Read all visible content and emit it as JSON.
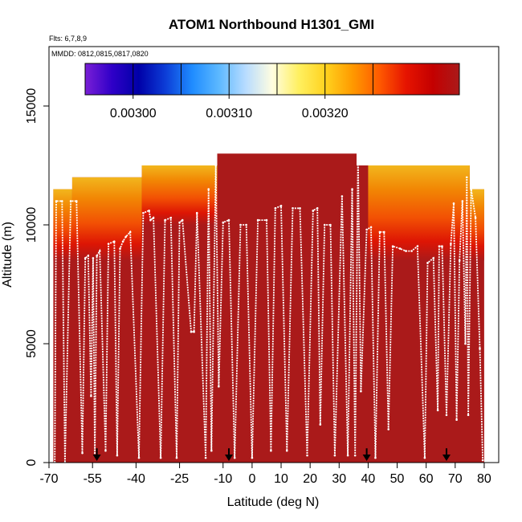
{
  "chart_data": {
    "type": "heatmap",
    "title": "ATOM1 Northbound H1301_GMI",
    "subtitle_flights": "Flts: 6,7,8,9",
    "subtitle_dates": "MMDD: 0812,0815,0817,0820",
    "xlabel": "Latitude (deg N)",
    "ylabel": "Altitude (m)",
    "xlim": [
      -70,
      85
    ],
    "ylim": [
      0,
      17500
    ],
    "x_ticks": [
      {
        "value": -70,
        "label": "-70"
      },
      {
        "value": -55,
        "label": "-55"
      },
      {
        "value": -40,
        "label": "-40"
      },
      {
        "value": -25,
        "label": "-25"
      },
      {
        "value": -10,
        "label": "-10"
      },
      {
        "value": 0,
        "label": "0"
      },
      {
        "value": 10,
        "label": "10"
      },
      {
        "value": 20,
        "label": "20"
      },
      {
        "value": 30,
        "label": "30"
      },
      {
        "value": 40,
        "label": "40"
      },
      {
        "value": 50,
        "label": "50"
      },
      {
        "value": 60,
        "label": "60"
      },
      {
        "value": 70,
        "label": "70"
      },
      {
        "value": 80,
        "label": "80"
      }
    ],
    "y_ticks": [
      {
        "value": 0,
        "label": "0"
      },
      {
        "value": 5000,
        "label": "5000"
      },
      {
        "value": 10000,
        "label": "10000"
      },
      {
        "value": 15000,
        "label": "15000"
      }
    ],
    "colorbar": {
      "min": 0.00295,
      "max": 0.00334,
      "colors": [
        "#7a1fd6",
        "#3000c8",
        "#0000a8",
        "#0c3cd6",
        "#1f8cff",
        "#5cb8ff",
        "#b8dcff",
        "#fffde0",
        "#fff060",
        "#ffd21e",
        "#ff9a00",
        "#ff5a00",
        "#e61400",
        "#c40000",
        "#aa1a1a"
      ],
      "ticks": [
        {
          "value": 0.003,
          "label": "0.00300"
        },
        {
          "value": 0.0031,
          "label": "0.00310"
        },
        {
          "value": 0.0032,
          "label": "0.00320"
        }
      ],
      "dividers": [
        0.003,
        0.00305,
        0.0031,
        0.00315,
        0.0032,
        0.00325
      ]
    },
    "background_value": 0.00334,
    "curtain_top": [
      {
        "x": -68.5,
        "y": 11500
      },
      {
        "x": -62,
        "y": 11500
      },
      {
        "x": -62,
        "y": 12000
      },
      {
        "x": -38,
        "y": 12000
      },
      {
        "x": -38,
        "y": 12500
      },
      {
        "x": -12,
        "y": 12500
      },
      {
        "x": -12,
        "y": 13000
      },
      {
        "x": 36,
        "y": 13000
      },
      {
        "x": 36,
        "y": 12500
      },
      {
        "x": 75,
        "y": 12500
      },
      {
        "x": 75,
        "y": 11500
      },
      {
        "x": 80,
        "y": 11500
      },
      {
        "x": 80,
        "y": 0
      },
      {
        "x": -68.5,
        "y": 0
      }
    ],
    "gradient_bands": [
      {
        "x0": -68.5,
        "x1": -62,
        "y_top": 11500,
        "y_bottom": 8500
      },
      {
        "x0": -62,
        "x1": -38,
        "y_top": 12000,
        "y_bottom": 8500
      },
      {
        "x0": -38,
        "x1": -12,
        "y_top": 12500,
        "y_bottom": 10000
      },
      {
        "x0": 40,
        "x1": 75,
        "y_top": 12500,
        "y_bottom": 8500
      },
      {
        "x0": 75,
        "x1": 80,
        "y_top": 11500,
        "y_bottom": 8500
      }
    ],
    "flight_track": [
      {
        "x": -68.0,
        "y": 0
      },
      {
        "x": -67.5,
        "y": 11000
      },
      {
        "x": -65.5,
        "y": 11000
      },
      {
        "x": -64.5,
        "y": 0
      },
      {
        "x": -62.5,
        "y": 11000
      },
      {
        "x": -60.5,
        "y": 11000
      },
      {
        "x": -58.5,
        "y": 400
      },
      {
        "x": -57.5,
        "y": 8600
      },
      {
        "x": -56.5,
        "y": 8700
      },
      {
        "x": -55.5,
        "y": 2800
      },
      {
        "x": -54.8,
        "y": 8600
      },
      {
        "x": -54.2,
        "y": 300
      },
      {
        "x": -53.5,
        "y": 8700
      },
      {
        "x": -52.5,
        "y": 8900
      },
      {
        "x": -50.5,
        "y": 500
      },
      {
        "x": -49.5,
        "y": 9200
      },
      {
        "x": -47.5,
        "y": 9300
      },
      {
        "x": -46.5,
        "y": 300
      },
      {
        "x": -45.5,
        "y": 9000
      },
      {
        "x": -44.5,
        "y": 9300
      },
      {
        "x": -43.5,
        "y": 9500
      },
      {
        "x": -42,
        "y": 9700
      },
      {
        "x": -39,
        "y": 200
      },
      {
        "x": -37.5,
        "y": 10500
      },
      {
        "x": -35.5,
        "y": 10600
      },
      {
        "x": -35,
        "y": 10200
      },
      {
        "x": -34,
        "y": 10300
      },
      {
        "x": -31.5,
        "y": 200
      },
      {
        "x": -30,
        "y": 10200
      },
      {
        "x": -28,
        "y": 10300
      },
      {
        "x": -26,
        "y": 200
      },
      {
        "x": -25,
        "y": 10100
      },
      {
        "x": -24,
        "y": 10200
      },
      {
        "x": -21,
        "y": 5500
      },
      {
        "x": -20,
        "y": 5500
      },
      {
        "x": -19,
        "y": 10500
      },
      {
        "x": -16,
        "y": 200
      },
      {
        "x": -15,
        "y": 11500
      },
      {
        "x": -14,
        "y": 500
      },
      {
        "x": -12.5,
        "y": 12500
      },
      {
        "x": -11.5,
        "y": 3200
      },
      {
        "x": -10,
        "y": 10100
      },
      {
        "x": -8,
        "y": 10200
      },
      {
        "x": -6,
        "y": 200
      },
      {
        "x": -4,
        "y": 10000
      },
      {
        "x": -2,
        "y": 10000
      },
      {
        "x": 0,
        "y": 200
      },
      {
        "x": 2,
        "y": 10200
      },
      {
        "x": 5,
        "y": 10200
      },
      {
        "x": 6.5,
        "y": 500
      },
      {
        "x": 8,
        "y": 10700
      },
      {
        "x": 10,
        "y": 10800
      },
      {
        "x": 12,
        "y": 500
      },
      {
        "x": 14,
        "y": 10700
      },
      {
        "x": 16.5,
        "y": 10700
      },
      {
        "x": 19,
        "y": 300
      },
      {
        "x": 21,
        "y": 10600
      },
      {
        "x": 22.5,
        "y": 10700
      },
      {
        "x": 23.5,
        "y": 1600
      },
      {
        "x": 25,
        "y": 10000
      },
      {
        "x": 27,
        "y": 10000
      },
      {
        "x": 28.5,
        "y": 300
      },
      {
        "x": 31,
        "y": 11200
      },
      {
        "x": 33,
        "y": 300
      },
      {
        "x": 34.5,
        "y": 11500
      },
      {
        "x": 35.5,
        "y": 300
      },
      {
        "x": 36.5,
        "y": 12900
      },
      {
        "x": 37.5,
        "y": 3000
      },
      {
        "x": 39.5,
        "y": 9800
      },
      {
        "x": 41,
        "y": 9900
      },
      {
        "x": 42.5,
        "y": 200
      },
      {
        "x": 44,
        "y": 9700
      },
      {
        "x": 45.5,
        "y": 9700
      },
      {
        "x": 47,
        "y": 1400
      },
      {
        "x": 48.5,
        "y": 9100
      },
      {
        "x": 51,
        "y": 9000
      },
      {
        "x": 53,
        "y": 8900
      },
      {
        "x": 55,
        "y": 8900
      },
      {
        "x": 57,
        "y": 9100
      },
      {
        "x": 59.5,
        "y": 200
      },
      {
        "x": 60.5,
        "y": 8400
      },
      {
        "x": 62.5,
        "y": 8600
      },
      {
        "x": 64,
        "y": 2200
      },
      {
        "x": 64.5,
        "y": 9100
      },
      {
        "x": 65.5,
        "y": 9100
      },
      {
        "x": 67,
        "y": 2000
      },
      {
        "x": 68.5,
        "y": 9200
      },
      {
        "x": 69.5,
        "y": 10900
      },
      {
        "x": 70.5,
        "y": 1800
      },
      {
        "x": 71.5,
        "y": 8500
      },
      {
        "x": 72.5,
        "y": 11000
      },
      {
        "x": 73.5,
        "y": 5000
      },
      {
        "x": 74,
        "y": 12000
      },
      {
        "x": 74.5,
        "y": 2000
      },
      {
        "x": 75.5,
        "y": 11500
      },
      {
        "x": 77,
        "y": 10300
      },
      {
        "x": 78.5,
        "y": 4800
      },
      {
        "x": 79.5,
        "y": 100
      }
    ],
    "arrows_x": [
      -53.5,
      -8,
      39.5,
      67
    ]
  }
}
